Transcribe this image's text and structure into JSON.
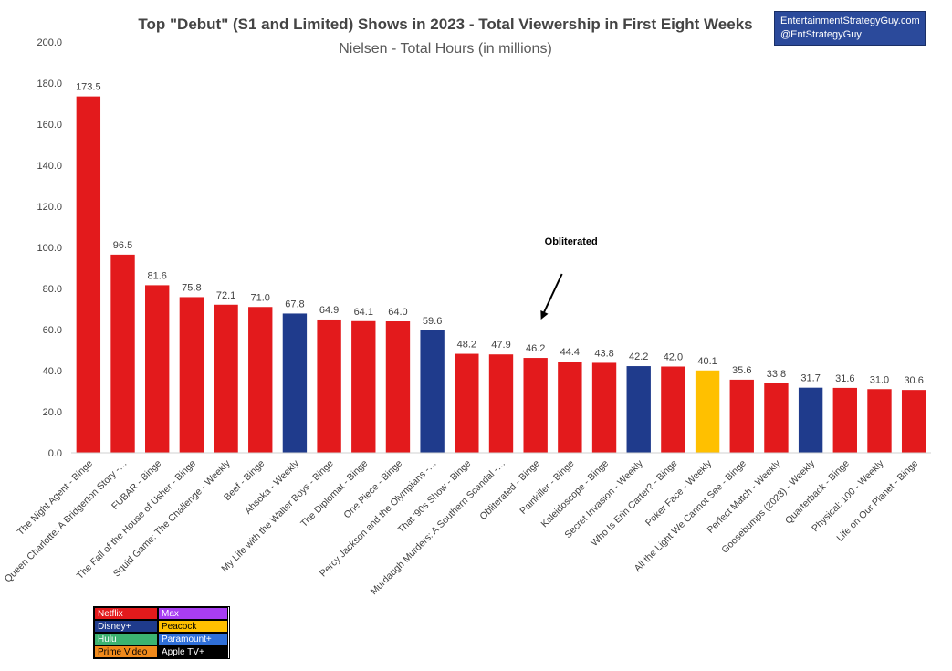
{
  "chart_data": {
    "type": "bar",
    "title": "Top \"Debut\" (S1 and Limited) Shows in 2023 - Total Viewership in First Eight Weeks",
    "subtitle": "Nielsen - Total Hours (in millions)",
    "ylim": [
      0,
      200
    ],
    "yticks": [
      "0.0",
      "20.0",
      "40.0",
      "60.0",
      "80.0",
      "100.0",
      "120.0",
      "140.0",
      "160.0",
      "180.0",
      "200.0"
    ],
    "grid": false,
    "categories": [
      "The Night Agent - Binge",
      "Queen Charlotte: A Bridgerton Story -…",
      "FUBAR - Binge",
      "The Fall of the House of Usher - Binge",
      "Squid Game: The Challenge - Weekly",
      "Beef - Binge",
      "Ahsoka - Weekly",
      "My Life with the Walter Boys - Binge",
      "The Diplomat - Binge",
      "One Piece - Binge",
      "Percy Jackson and the Olympians -…",
      "That '90s Show - Binge",
      "Murdaugh Murders: A Southern Scandal -…",
      "Obliterated - Binge",
      "Painkiller - Binge",
      "Kaleidoscope - Binge",
      "Secret Invasion - Weekly",
      "Who Is Erin Carter? - Binge",
      "Poker Face - Weekly",
      "All the Light We Cannot See - Binge",
      "Perfect Match - Weekly",
      "Goosebumps (2023) - Weekly",
      "Quarterback - Binge",
      "Physical: 100 - Weekly",
      "Life on Our Planet - Binge"
    ],
    "values": [
      173.5,
      96.5,
      81.6,
      75.8,
      72.1,
      71.0,
      67.8,
      64.9,
      64.1,
      64.0,
      59.6,
      48.2,
      47.9,
      46.2,
      44.4,
      43.8,
      42.2,
      42.0,
      40.1,
      35.6,
      33.8,
      31.7,
      31.6,
      31.0,
      30.6
    ],
    "value_labels": [
      "173.5",
      "96.5",
      "81.6",
      "75.8",
      "72.1",
      "71.0",
      "67.8",
      "64.9",
      "64.1",
      "64.0",
      "59.6",
      "48.2",
      "47.9",
      "46.2",
      "44.4",
      "43.8",
      "42.2",
      "42.0",
      "40.1",
      "35.6",
      "33.8",
      "31.7",
      "31.6",
      "31.0",
      "30.6"
    ],
    "platforms": [
      "Netflix",
      "Netflix",
      "Netflix",
      "Netflix",
      "Netflix",
      "Netflix",
      "Disney+",
      "Netflix",
      "Netflix",
      "Netflix",
      "Disney+",
      "Netflix",
      "Netflix",
      "Netflix",
      "Netflix",
      "Netflix",
      "Disney+",
      "Netflix",
      "Peacock",
      "Netflix",
      "Netflix",
      "Disney+",
      "Netflix",
      "Netflix",
      "Netflix"
    ],
    "annotation": {
      "text": "Obliterated",
      "target_category": "Obliterated - Binge"
    }
  },
  "credit": {
    "line1": "EntertainmentStrategyGuy.com",
    "line2": "@EntStrategyGuy"
  },
  "legend": [
    {
      "label": "Netflix",
      "color": "#e31a1c",
      "text_color": "#ffffff"
    },
    {
      "label": "Max",
      "color": "#a83df2",
      "text_color": "#ffffff"
    },
    {
      "label": "Disney+",
      "color": "#1f3b8c",
      "text_color": "#ffffff"
    },
    {
      "label": "Peacock",
      "color": "#ffc000",
      "text_color": "#000000"
    },
    {
      "label": "Hulu",
      "color": "#3cb371",
      "text_color": "#ffffff"
    },
    {
      "label": "Paramount+",
      "color": "#2f6fd8",
      "text_color": "#ffffff"
    },
    {
      "label": "Prime Video",
      "color": "#f08a1c",
      "text_color": "#000000"
    },
    {
      "label": "Apple TV+",
      "color": "#000000",
      "text_color": "#ffffff"
    }
  ],
  "platform_colors": {
    "Netflix": "#e31a1c",
    "Disney+": "#1f3b8c",
    "Peacock": "#ffc000"
  }
}
